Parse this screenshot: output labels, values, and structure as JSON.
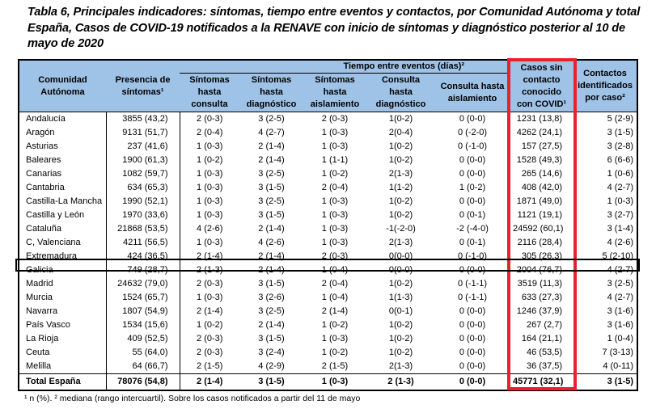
{
  "title": "Tabla 6, Principales indicadores: síntomas, tiempo entre eventos y contactos, por Comunidad Autónoma y total España, Casos de COVID-19 notificados a la RENAVE  con inicio de síntomas y diagnóstico posterior al 10 de mayo de 2020",
  "table": {
    "group_header": "Tiempo entre eventos (días)²",
    "headers": {
      "ca": "Comunidad Autónoma",
      "presencia": "Presencia de síntomas¹",
      "sint_consulta": "Síntomas hasta consulta",
      "sint_diag": "Síntomas hasta diagnóstico",
      "sint_aisl": "Síntomas hasta aislamiento",
      "cons_diag": "Consulta hasta diagnóstico",
      "cons_aisl": "Consulta hasta aislamiento",
      "casos_sin": "Casos sin contacto conocido con COVID¹",
      "contactos": "Contactos identificados por caso²"
    },
    "rows": [
      {
        "ca": "Andalucía",
        "presencia": "3855 (43,2)",
        "sint_consulta": "2 (0-3)",
        "sint_diag": "3 (2-5)",
        "sint_aisl": "2 (0-3)",
        "cons_diag": "1(0-2)",
        "cons_aisl": "0 (0-0)",
        "casos_sin": "1231 (13,8)",
        "contactos": "5 (2-9)"
      },
      {
        "ca": "Aragón",
        "presencia": "9131 (51,7)",
        "sint_consulta": "2 (0-4)",
        "sint_diag": "4 (2-7)",
        "sint_aisl": "1 (0-3)",
        "cons_diag": "2(0-4)",
        "cons_aisl": "0 (-2-0)",
        "casos_sin": "4262 (24,1)",
        "contactos": "3 (1-5)"
      },
      {
        "ca": "Asturias",
        "presencia": "237 (41,6)",
        "sint_consulta": "1 (0-3)",
        "sint_diag": "2 (1-4)",
        "sint_aisl": "1 (0-3)",
        "cons_diag": "1(0-2)",
        "cons_aisl": "0 (-1-0)",
        "casos_sin": "157 (27,5)",
        "contactos": "3 (2-8)"
      },
      {
        "ca": "Baleares",
        "presencia": "1900 (61,3)",
        "sint_consulta": "1 (0-2)",
        "sint_diag": "2 (1-4)",
        "sint_aisl": "1 (1-1)",
        "cons_diag": "1(0-2)",
        "cons_aisl": "0 (0-0)",
        "casos_sin": "1528 (49,3)",
        "contactos": "6 (6-6)"
      },
      {
        "ca": "Canarias",
        "presencia": "1082 (59,7)",
        "sint_consulta": "1 (0-3)",
        "sint_diag": "3 (2-5)",
        "sint_aisl": "1 (0-2)",
        "cons_diag": "2(1-3)",
        "cons_aisl": "0 (0-0)",
        "casos_sin": "265 (14,6)",
        "contactos": "1 (0-6)"
      },
      {
        "ca": "Cantabria",
        "presencia": "634 (65,3)",
        "sint_consulta": "1 (0-3)",
        "sint_diag": "3 (1-5)",
        "sint_aisl": "2 (0-4)",
        "cons_diag": "1(1-2)",
        "cons_aisl": "1 (0-2)",
        "casos_sin": "408 (42,0)",
        "contactos": "4 (2-7)"
      },
      {
        "ca": "Castilla-La Mancha",
        "presencia": "1990 (52,1)",
        "sint_consulta": "1 (0-3)",
        "sint_diag": "3 (2-5)",
        "sint_aisl": "1 (0-3)",
        "cons_diag": "1(0-2)",
        "cons_aisl": "0 (0-0)",
        "casos_sin": "1871 (49,0)",
        "contactos": "1 (0-3)"
      },
      {
        "ca": "Castilla y León",
        "presencia": "1970 (33,6)",
        "sint_consulta": "1 (0-3)",
        "sint_diag": "3 (1-5)",
        "sint_aisl": "1 (0-3)",
        "cons_diag": "1(0-2)",
        "cons_aisl": "0 (0-1)",
        "casos_sin": "1121 (19,1)",
        "contactos": "3 (2-7)"
      },
      {
        "ca": "Cataluña",
        "presencia": "21868 (53,5)",
        "sint_consulta": "4 (2-6)",
        "sint_diag": "2 (1-4)",
        "sint_aisl": "1 (0-3)",
        "cons_diag": "-1(-2-0)",
        "cons_aisl": "-2 (-4-0)",
        "casos_sin": "24592 (60,1)",
        "contactos": "3 (1-4)"
      },
      {
        "ca": "C, Valenciana",
        "presencia": "4211 (56,5)",
        "sint_consulta": "1 (0-3)",
        "sint_diag": "4 (2-6)",
        "sint_aisl": "1 (0-3)",
        "cons_diag": "2(1-3)",
        "cons_aisl": "0 (0-1)",
        "casos_sin": "2116 (28,4)",
        "contactos": "4 (2-6)"
      },
      {
        "ca": "Extremadura",
        "presencia": "424 (36,5)",
        "sint_consulta": "2 (1-4)",
        "sint_diag": "2 (1-4)",
        "sint_aisl": "2 (0-3)",
        "cons_diag": "0(0-0)",
        "cons_aisl": "0 (-1-0)",
        "casos_sin": "305 (26,3)",
        "contactos": "5 (2-10)"
      },
      {
        "ca": "Galicia",
        "presencia": "749 (28,7)",
        "sint_consulta": "2 (1-3)",
        "sint_diag": "2 (1-4)",
        "sint_aisl": "1 (0-4)",
        "cons_diag": "0(0-0)",
        "cons_aisl": "0 (0-0)",
        "casos_sin": "2004 (76,7)",
        "contactos": "4 (2-7)"
      },
      {
        "ca": "Madrid",
        "presencia": "24632 (79,0)",
        "sint_consulta": "2 (0-3)",
        "sint_diag": "3 (1-5)",
        "sint_aisl": "2 (0-4)",
        "cons_diag": "1(0-2)",
        "cons_aisl": "0 (-1-1)",
        "casos_sin": "3519 (11,3)",
        "contactos": "3 (2-5)"
      },
      {
        "ca": "Murcia",
        "presencia": "1524 (65,7)",
        "sint_consulta": "1 (0-3)",
        "sint_diag": "3 (2-6)",
        "sint_aisl": "1 (0-4)",
        "cons_diag": "1(1-3)",
        "cons_aisl": "0 (-1-1)",
        "casos_sin": "633 (27,3)",
        "contactos": "4 (2-7)"
      },
      {
        "ca": "Navarra",
        "presencia": "1807 (54,9)",
        "sint_consulta": "2 (1-4)",
        "sint_diag": "3 (2-5)",
        "sint_aisl": "2 (1-4)",
        "cons_diag": "0(0-1)",
        "cons_aisl": "0 (0-0)",
        "casos_sin": "1246 (37,9)",
        "contactos": "3 (1-6)"
      },
      {
        "ca": "País Vasco",
        "presencia": "1534 (15,6)",
        "sint_consulta": "1 (0-2)",
        "sint_diag": "2 (1-4)",
        "sint_aisl": "1 (0-2)",
        "cons_diag": "1(0-2)",
        "cons_aisl": "0 (0-0)",
        "casos_sin": "267 (2,7)",
        "contactos": "3 (1-6)"
      },
      {
        "ca": "La Rioja",
        "presencia": "409 (52,5)",
        "sint_consulta": "2 (0-3)",
        "sint_diag": "3 (1-5)",
        "sint_aisl": "1 (0-3)",
        "cons_diag": "1(0-2)",
        "cons_aisl": "0 (0-0)",
        "casos_sin": "164 (21,1)",
        "contactos": "1 (0-4)"
      },
      {
        "ca": "Ceuta",
        "presencia": "55 (64,0)",
        "sint_consulta": "2 (0-3)",
        "sint_diag": "3 (2-4)",
        "sint_aisl": "1 (0-2)",
        "cons_diag": "1(0-2)",
        "cons_aisl": "0 (0-0)",
        "casos_sin": "46 (53,5)",
        "contactos": "7 (3-13)"
      },
      {
        "ca": "Melilla",
        "presencia": "64 (66,7)",
        "sint_consulta": "2 (1-5)",
        "sint_diag": "4 (2-9)",
        "sint_aisl": "2 (1-5)",
        "cons_diag": "2(1-3)",
        "cons_aisl": "0 (0-0)",
        "casos_sin": "36 (37,5)",
        "contactos": "4 (0-11)"
      }
    ],
    "total": {
      "ca": "Total España",
      "presencia": "78076 (54,8)",
      "sint_consulta": "2 (1-4)",
      "sint_diag": "3 (1-5)",
      "sint_aisl": "1 (0-3)",
      "cons_diag": "2 (1-3)",
      "cons_aisl": "0 (0-0)",
      "casos_sin": "45771 (32,1)",
      "contactos": "3 (1-5)"
    }
  },
  "highlights": {
    "column_box_color": "#e8212b",
    "row_box_color": "#000000",
    "header_bg": "#9fc2e7"
  },
  "footnote": "¹ n (%).  ² mediana (rango intercuartil).  Sobre los casos notificados a partir del 11 de mayo"
}
